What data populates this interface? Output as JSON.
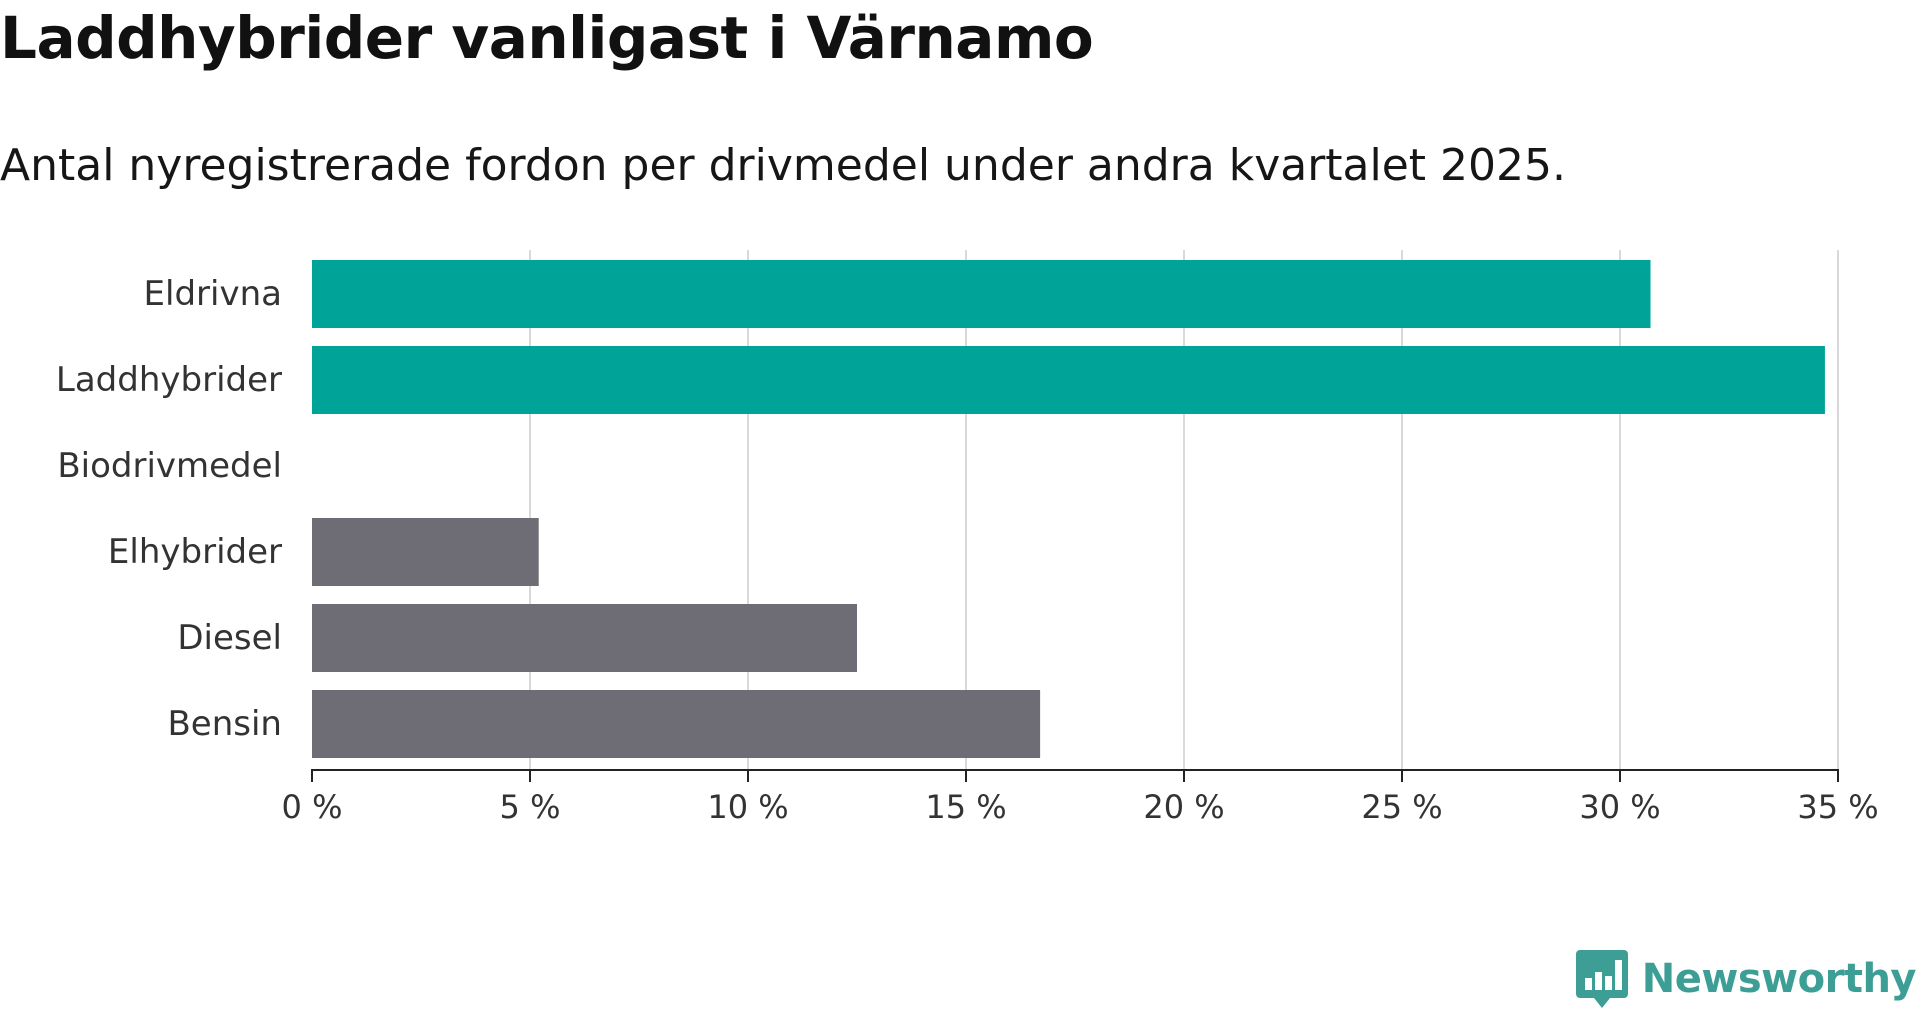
{
  "header": {
    "title": "Laddhybrider vanligast i Värnamo",
    "subtitle": "Antal nyregistrerade fordon per drivmedel under andra kvartalet 2025."
  },
  "brand": {
    "name": "Newsworthy",
    "color": "#3c9e95",
    "icon": "newsworthy-logo-icon"
  },
  "colors": {
    "highlight": "#00a398",
    "neutral": "#6e6d75",
    "grid": "#d9d9d9",
    "axis": "#222222"
  },
  "chart_data": {
    "type": "bar",
    "orientation": "horizontal",
    "categories": [
      "Eldrivna",
      "Laddhybrider",
      "Biodrivmedel",
      "Elhybrider",
      "Diesel",
      "Bensin"
    ],
    "values": [
      30.7,
      34.7,
      0,
      5.2,
      12.5,
      16.7
    ],
    "highlighted": [
      true,
      true,
      false,
      false,
      false,
      false
    ],
    "xlim": [
      0,
      35
    ],
    "xticks": [
      0,
      5,
      10,
      15,
      20,
      25,
      30,
      35
    ],
    "xtick_labels": [
      "0 %",
      "5 %",
      "10 %",
      "15 %",
      "20 %",
      "25 %",
      "30 %",
      "35 %"
    ],
    "grid": "vertical",
    "legend": "none"
  }
}
